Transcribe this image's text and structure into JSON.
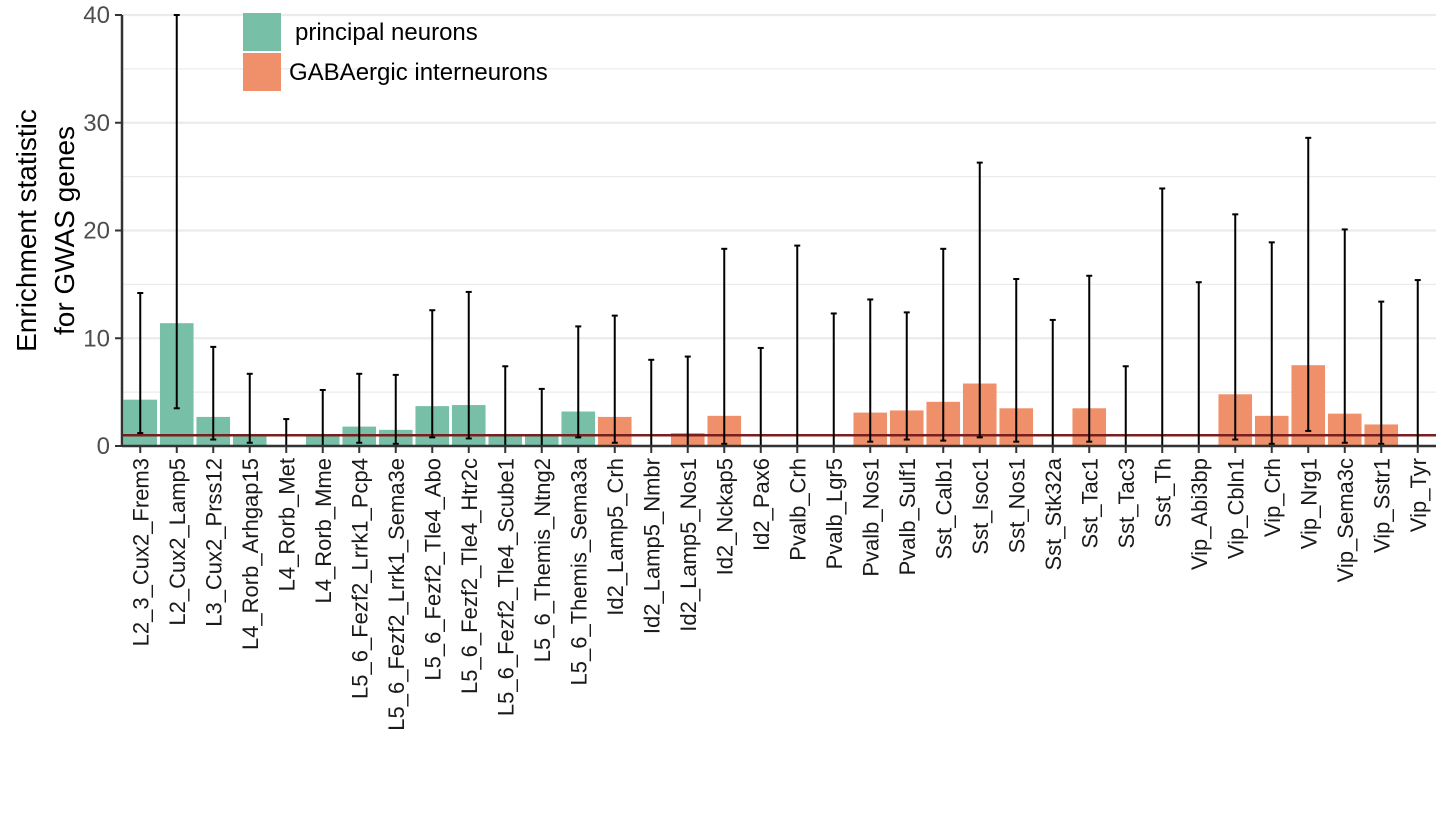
{
  "chart_data": {
    "type": "bar",
    "ylabel": "Enrichment statistic\nfor GWAS genes",
    "xlabel": "",
    "ylim": [
      0,
      40
    ],
    "yticks": [
      0,
      10,
      20,
      30,
      40
    ],
    "grid": true,
    "reference_line": {
      "y": 1,
      "color": "#7a1f1f"
    },
    "legend_position": "top-left",
    "colors": {
      "principal": "#77bfa6",
      "gaba": "#f0906a",
      "errorbar": "#000000",
      "grid": "#ebebeb",
      "axis": "#333333"
    },
    "legend": [
      {
        "key": "principal",
        "label": "principal neurons"
      },
      {
        "key": "gaba",
        "label": "GABAergic interneurons"
      }
    ],
    "categories": [
      "L2_3_Cux2_Frem3",
      "L2_Cux2_Lamp5",
      "L3_Cux2_Prss12",
      "L4_Rorb_Arhgap15",
      "L4_Rorb_Met",
      "L4_Rorb_Mme",
      "L5_6_Fezf2_Lrrk1_Pcp4",
      "L5_6_Fezf2_Lrrk1_Sema3e",
      "L5_6_Fezf2_Tle4_Abo",
      "L5_6_Fezf2_Tle4_Htr2c",
      "L5_6_Fezf2_Tle4_Scube1",
      "L5_6_Themis_Ntng2",
      "L5_6_Themis_Sema3a",
      "Id2_Lamp5_Crh",
      "Id2_Lamp5_Nmbr",
      "Id2_Lamp5_Nos1",
      "Id2_Nckap5",
      "Id2_Pax6",
      "Pvalb_Crh",
      "Pvalb_Lgr5",
      "Pvalb_Nos1",
      "Pvalb_Sulf1",
      "Sst_Calb1",
      "Sst_Isoc1",
      "Sst_Nos1",
      "Sst_Stk32a",
      "Sst_Tac1",
      "Sst_Tac3",
      "Sst_Th",
      "Vip_Abi3bp",
      "Vip_Cbln1",
      "Vip_Crh",
      "Vip_Nrg1",
      "Vip_Sema3c",
      "Vip_Sstr1",
      "Vip_Tyr"
    ],
    "groups": [
      "principal",
      "principal",
      "principal",
      "principal",
      "principal",
      "principal",
      "principal",
      "principal",
      "principal",
      "principal",
      "principal",
      "principal",
      "principal",
      "gaba",
      "gaba",
      "gaba",
      "gaba",
      "gaba",
      "gaba",
      "gaba",
      "gaba",
      "gaba",
      "gaba",
      "gaba",
      "gaba",
      "gaba",
      "gaba",
      "gaba",
      "gaba",
      "gaba",
      "gaba",
      "gaba",
      "gaba",
      "gaba",
      "gaba",
      "gaba"
    ],
    "values": [
      4.3,
      11.4,
      2.7,
      1.0,
      0,
      1.0,
      1.8,
      1.5,
      3.7,
      3.8,
      1.0,
      1.0,
      3.2,
      2.7,
      0,
      1.2,
      2.8,
      0,
      0,
      0,
      3.1,
      3.3,
      4.1,
      5.8,
      3.5,
      0,
      3.5,
      0,
      0,
      0,
      4.8,
      2.8,
      7.5,
      3.0,
      2.0,
      0
    ],
    "error_low": [
      1.2,
      3.5,
      0.6,
      0.3,
      0,
      0,
      0.3,
      0.2,
      0.8,
      0.7,
      0,
      0,
      0.8,
      0.3,
      0,
      0,
      0.2,
      0,
      0,
      0,
      0.4,
      0.6,
      0.5,
      0.8,
      0.4,
      0,
      0.4,
      0,
      0,
      0,
      0.6,
      0.2,
      1.4,
      0.3,
      0.2,
      0
    ],
    "error_high": [
      14.2,
      40,
      9.2,
      6.7,
      2.5,
      5.2,
      6.7,
      6.6,
      12.6,
      14.3,
      7.4,
      5.3,
      11.1,
      12.1,
      8.0,
      8.3,
      18.3,
      9.1,
      18.6,
      12.3,
      13.6,
      12.4,
      18.3,
      26.3,
      15.5,
      11.7,
      15.8,
      7.4,
      23.9,
      15.2,
      21.5,
      18.9,
      28.6,
      20.1,
      13.4,
      15.4
    ]
  }
}
